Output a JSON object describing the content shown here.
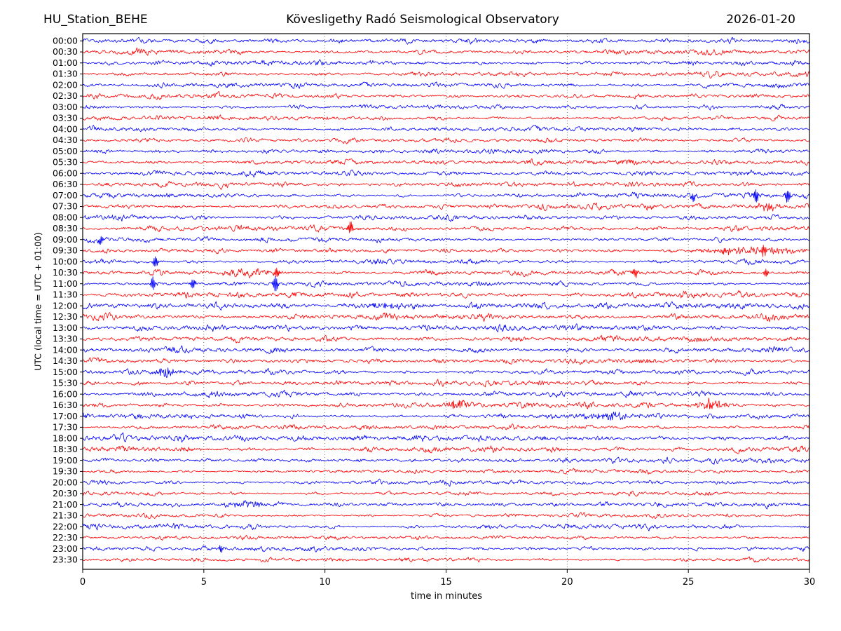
{
  "header": {
    "station": "HU_Station_BEHE",
    "observatory": "Kövesligethy Radó Seismological Observatory",
    "date": "2026-01-20"
  },
  "chart_data": {
    "type": "line",
    "subtype": "helicorder-seismogram",
    "title": "Kövesligethy Radó Seismological Observatory",
    "station": "HU_Station_BEHE",
    "date": "2026-01-20",
    "xlabel": "time in minutes",
    "ylabel": "UTC (local time = UTC + 01:00)",
    "xlim": [
      0,
      30
    ],
    "x_ticks": [
      0,
      5,
      10,
      15,
      20,
      25,
      30
    ],
    "minutes_per_row": 30,
    "grid": {
      "vertical_dotted_at": [
        5,
        10,
        15,
        20,
        25
      ],
      "horizontal": false
    },
    "legend_position": "none",
    "colors": {
      "trace_blue": "#0000ff",
      "trace_red": "#ff0000",
      "frame": "#000000",
      "grid": "#555555",
      "background": "#ffffff"
    },
    "rows": [
      {
        "time": "00:00",
        "color": "#0000ff",
        "amp": 1.0
      },
      {
        "time": "00:30",
        "color": "#ff0000",
        "amp": 1.0
      },
      {
        "time": "01:00",
        "color": "#0000ff",
        "amp": 0.95
      },
      {
        "time": "01:30",
        "color": "#ff0000",
        "amp": 1.0
      },
      {
        "time": "02:00",
        "color": "#0000ff",
        "amp": 1.0
      },
      {
        "time": "02:30",
        "color": "#ff0000",
        "amp": 0.95
      },
      {
        "time": "03:00",
        "color": "#0000ff",
        "amp": 0.9
      },
      {
        "time": "03:30",
        "color": "#ff0000",
        "amp": 0.9
      },
      {
        "time": "04:00",
        "color": "#0000ff",
        "amp": 0.95
      },
      {
        "time": "04:30",
        "color": "#ff0000",
        "amp": 0.9
      },
      {
        "time": "05:00",
        "color": "#0000ff",
        "amp": 0.95
      },
      {
        "time": "05:30",
        "color": "#ff0000",
        "amp": 1.0
      },
      {
        "time": "06:00",
        "color": "#0000ff",
        "amp": 1.05
      },
      {
        "time": "06:30",
        "color": "#ff0000",
        "amp": 1.0
      },
      {
        "time": "07:00",
        "color": "#0000ff",
        "amp": 1.0
      },
      {
        "time": "07:30",
        "color": "#ff0000",
        "amp": 1.05
      },
      {
        "time": "08:00",
        "color": "#0000ff",
        "amp": 1.0
      },
      {
        "time": "08:30",
        "color": "#ff0000",
        "amp": 1.05
      },
      {
        "time": "09:00",
        "color": "#0000ff",
        "amp": 0.95
      },
      {
        "time": "09:30",
        "color": "#ff0000",
        "amp": 1.0
      },
      {
        "time": "10:00",
        "color": "#0000ff",
        "amp": 0.95
      },
      {
        "time": "10:30",
        "color": "#ff0000",
        "amp": 1.0
      },
      {
        "time": "11:00",
        "color": "#0000ff",
        "amp": 0.9
      },
      {
        "time": "11:30",
        "color": "#ff0000",
        "amp": 1.15
      },
      {
        "time": "12:00",
        "color": "#0000ff",
        "amp": 1.25
      },
      {
        "time": "12:30",
        "color": "#ff0000",
        "amp": 1.25
      },
      {
        "time": "13:00",
        "color": "#0000ff",
        "amp": 1.25
      },
      {
        "time": "13:30",
        "color": "#ff0000",
        "amp": 1.1
      },
      {
        "time": "14:00",
        "color": "#0000ff",
        "amp": 1.1
      },
      {
        "time": "14:30",
        "color": "#ff0000",
        "amp": 1.05
      },
      {
        "time": "15:00",
        "color": "#0000ff",
        "amp": 1.0
      },
      {
        "time": "15:30",
        "color": "#ff0000",
        "amp": 1.0
      },
      {
        "time": "16:00",
        "color": "#0000ff",
        "amp": 1.1
      },
      {
        "time": "16:30",
        "color": "#ff0000",
        "amp": 1.1
      },
      {
        "time": "17:00",
        "color": "#0000ff",
        "amp": 1.0
      },
      {
        "time": "17:30",
        "color": "#ff0000",
        "amp": 0.95
      },
      {
        "time": "18:00",
        "color": "#0000ff",
        "amp": 1.15
      },
      {
        "time": "18:30",
        "color": "#ff0000",
        "amp": 1.1
      },
      {
        "time": "19:00",
        "color": "#0000ff",
        "amp": 0.95
      },
      {
        "time": "19:30",
        "color": "#ff0000",
        "amp": 0.8
      },
      {
        "time": "20:00",
        "color": "#0000ff",
        "amp": 0.9
      },
      {
        "time": "20:30",
        "color": "#ff0000",
        "amp": 0.8
      },
      {
        "time": "21:00",
        "color": "#0000ff",
        "amp": 0.95
      },
      {
        "time": "21:30",
        "color": "#ff0000",
        "amp": 0.75
      },
      {
        "time": "22:00",
        "color": "#0000ff",
        "amp": 0.95
      },
      {
        "time": "22:30",
        "color": "#ff0000",
        "amp": 0.8
      },
      {
        "time": "23:00",
        "color": "#0000ff",
        "amp": 0.9
      },
      {
        "time": "23:30",
        "color": "#ff0000",
        "amp": 0.8
      }
    ],
    "events": [
      {
        "row": "07:00",
        "minute": 25.2,
        "kind": "spike",
        "amp": 8
      },
      {
        "row": "07:00",
        "minute": 27.8,
        "kind": "spike",
        "amp": 10
      },
      {
        "row": "07:00",
        "minute": 29.1,
        "kind": "spike",
        "amp": 9
      },
      {
        "row": "07:30",
        "minute": 28.3,
        "kind": "burst",
        "amp": 6,
        "width": 0.4
      },
      {
        "row": "08:30",
        "minute": 11.05,
        "kind": "spike",
        "amp": 10
      },
      {
        "row": "09:00",
        "minute": 0.75,
        "kind": "spike",
        "amp": 7
      },
      {
        "row": "09:30",
        "minute": 27.5,
        "kind": "burst",
        "amp": 5,
        "width": 1.5
      },
      {
        "row": "09:30",
        "minute": 26.5,
        "kind": "spike",
        "amp": 6
      },
      {
        "row": "09:30",
        "minute": 28.1,
        "kind": "spike",
        "amp": 7
      },
      {
        "row": "10:00",
        "minute": 3.0,
        "kind": "spike",
        "amp": 8
      },
      {
        "row": "10:30",
        "minute": 6.8,
        "kind": "burst",
        "amp": 5,
        "width": 0.8
      },
      {
        "row": "10:30",
        "minute": 8.0,
        "kind": "spike",
        "amp": 7
      },
      {
        "row": "10:30",
        "minute": 22.8,
        "kind": "spike",
        "amp": 7
      },
      {
        "row": "10:30",
        "minute": 28.2,
        "kind": "spike",
        "amp": 6
      },
      {
        "row": "11:00",
        "minute": 2.9,
        "kind": "spike",
        "amp": 9
      },
      {
        "row": "11:00",
        "minute": 4.55,
        "kind": "spike",
        "amp": 8
      },
      {
        "row": "11:00",
        "minute": 7.95,
        "kind": "spike",
        "amp": 14
      },
      {
        "row": "12:00",
        "minute": 12.5,
        "kind": "burst",
        "amp": 4,
        "width": 1.0
      },
      {
        "row": "15:00",
        "minute": 3.4,
        "kind": "burst",
        "amp": 7,
        "width": 0.35
      },
      {
        "row": "16:30",
        "minute": 15.35,
        "kind": "burst",
        "amp": 6,
        "width": 0.3
      },
      {
        "row": "16:30",
        "minute": 26.0,
        "kind": "burst",
        "amp": 6,
        "width": 0.5
      },
      {
        "row": "17:00",
        "minute": 21.8,
        "kind": "burst",
        "amp": 5,
        "width": 0.9
      },
      {
        "row": "21:00",
        "minute": 6.9,
        "kind": "burst",
        "amp": 4,
        "width": 0.6
      },
      {
        "row": "23:00",
        "minute": 5.7,
        "kind": "spike",
        "amp": 5
      }
    ]
  }
}
